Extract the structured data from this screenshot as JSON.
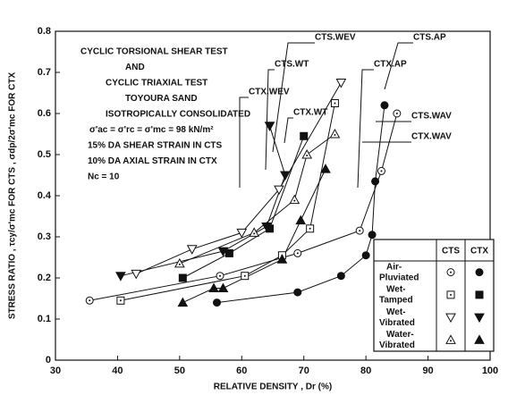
{
  "chart_data": {
    "type": "scatter",
    "xlabel": "RELATIVE DENSITY , Dr (%)",
    "ylabel": "STRESS RATIO , τcy/σ'mc FOR CTS , σdp/2σ'mc FOR CTX",
    "annotations": [
      "CYCLIC TORSIONAL SHEAR TEST",
      "AND",
      "CYCLIC TRIAXIAL TEST",
      "TOYOURA SAND",
      "ISOTROPICALLY CONSOLIDATED",
      "σ'ac = σ'rc = σ'mc = 98 kN/m²",
      "15% DA SHEAR STRAIN IN CTS",
      "10% DA AXIAL STRAIN IN CTX",
      "Nc = 10"
    ],
    "curve_labels": [
      "CTS.WEV",
      "CTS.WT",
      "CTX.WEV",
      "CTX.WT",
      "CTX.AP",
      "CTS.AP",
      "CTS.WAV",
      "CTX.WAV"
    ],
    "xlim": [
      30,
      100
    ],
    "xticks": [
      30,
      40,
      50,
      60,
      70,
      80,
      90,
      100
    ],
    "ylim": [
      0,
      0.8
    ],
    "yticks": [
      0,
      0.1,
      0.2,
      0.3,
      0.4,
      0.5,
      0.6,
      0.7,
      0.8
    ],
    "legend": {
      "columns": [
        "CTS",
        "CTX"
      ],
      "rows": [
        [
          "Air-",
          "Pluviated"
        ],
        [
          "Wet-",
          "Tamped"
        ],
        [
          "Wet-",
          "Vibrated"
        ],
        [
          "Water-",
          "Vibrated"
        ]
      ]
    },
    "series": [
      {
        "row": 0,
        "column": 0,
        "marker": "circle",
        "filled": false,
        "x": [
          35.5,
          56.5,
          69,
          79,
          82.5,
          85
        ],
        "y": [
          0.145,
          0.205,
          0.26,
          0.315,
          0.46,
          0.6
        ]
      },
      {
        "row": 0,
        "column": 1,
        "marker": "circle",
        "filled": true,
        "x": [
          56,
          69,
          76,
          80,
          81,
          81.5,
          83
        ],
        "y": [
          0.14,
          0.165,
          0.205,
          0.255,
          0.305,
          0.435,
          0.62
        ]
      },
      {
        "row": 1,
        "column": 0,
        "marker": "square",
        "filled": false,
        "x": [
          40.5,
          60.5,
          66.5,
          71,
          75
        ],
        "y": [
          0.145,
          0.205,
          0.255,
          0.32,
          0.625
        ]
      },
      {
        "row": 1,
        "column": 1,
        "marker": "square",
        "filled": true,
        "x": [
          50.5,
          58,
          64.5,
          70
        ],
        "y": [
          0.2,
          0.26,
          0.32,
          0.545
        ]
      },
      {
        "row": 2,
        "column": 0,
        "marker": "down",
        "filled": false,
        "x": [
          43,
          52,
          60,
          66,
          76
        ],
        "y": [
          0.21,
          0.27,
          0.31,
          0.415,
          0.675
        ]
      },
      {
        "row": 2,
        "column": 1,
        "marker": "down",
        "filled": true,
        "x": [
          40.5,
          57,
          64,
          67,
          64.5
        ],
        "y": [
          0.205,
          0.265,
          0.325,
          0.45,
          0.57
        ]
      },
      {
        "row": 3,
        "column": 0,
        "marker": "up",
        "filled": false,
        "x": [
          50,
          62,
          68.5,
          70.5,
          75
        ],
        "y": [
          0.235,
          0.31,
          0.39,
          0.5,
          0.55
        ]
      },
      {
        "row": 3,
        "column": 1,
        "marker": "up",
        "filled": true,
        "x": [
          50.5,
          55.5,
          57,
          66.5,
          69.5,
          73.5
        ],
        "y": [
          0.14,
          0.175,
          0.175,
          0.245,
          0.34,
          0.465
        ]
      }
    ]
  }
}
